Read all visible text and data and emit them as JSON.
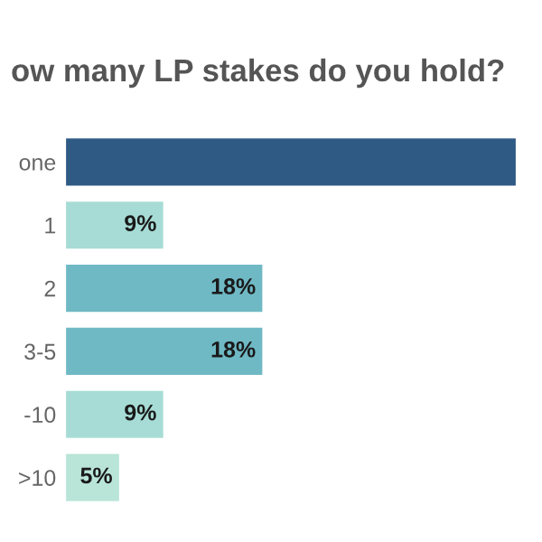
{
  "chart_data": {
    "type": "bar",
    "orientation": "horizontal",
    "title": "ow many LP stakes do you hold?",
    "categories": [
      "one",
      "1",
      "2",
      "3-5",
      "-10",
      ">10"
    ],
    "values": [
      41,
      9,
      18,
      18,
      9,
      5
    ],
    "value_labels": [
      null,
      "9%",
      "18%",
      "18%",
      "9%",
      "5%"
    ],
    "colors": [
      "#2e5a84",
      "#a6dcd5",
      "#6fb9c5",
      "#6fb9c5",
      "#a6dcd5",
      "#b9e5d8"
    ],
    "grid": false,
    "legend": false
  }
}
